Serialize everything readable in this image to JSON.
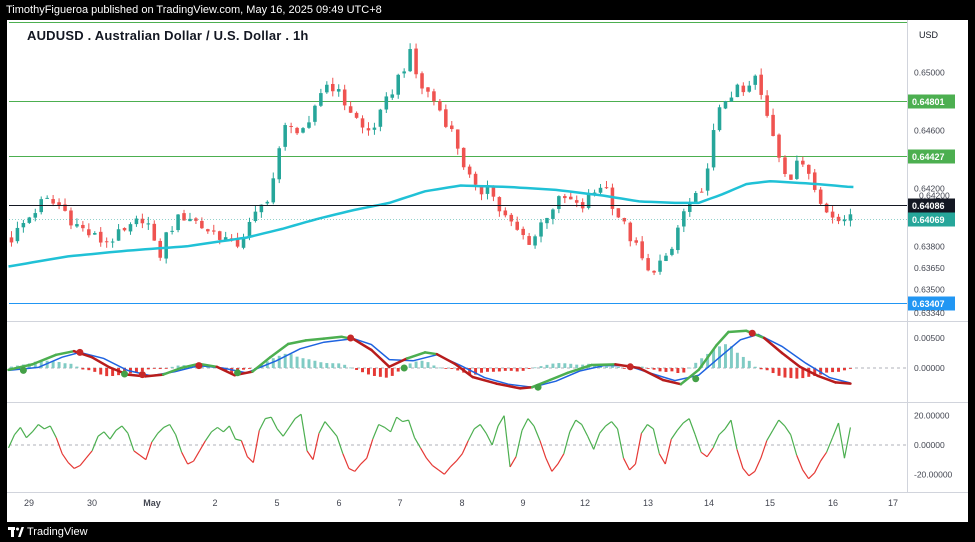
{
  "header": {
    "published_text": "TimothyFigueroa published on TradingView.com, May 16, 2025 09:49 UTC+8"
  },
  "chart_title": "AUDUSD . Australian Dollar / U.S. Dollar . 1h",
  "footer": {
    "brand": "TradingView"
  },
  "colors": {
    "up": "#26a69a",
    "down": "#ef5350",
    "ma": "#20c1d6",
    "level_green": "#4caf50",
    "level_blue": "#2196f3",
    "osc_fast": "#4caf50",
    "osc_slow": "#1e63e0",
    "osc_red": "#b71c1c",
    "hist_up": "#80cbc4",
    "hist_down": "#e53935",
    "rsi_up": "#4caf50",
    "rsi_down": "#e53935"
  },
  "chart_data": [
    {
      "type": "candlestick",
      "series_name": "AUDUSD",
      "currency_label": "USD",
      "x_ticks": [
        "29",
        "30",
        "May",
        "2",
        "5",
        "6",
        "7",
        "8",
        "9",
        "12",
        "13",
        "14",
        "15",
        "16",
        "17"
      ],
      "y_ticks": [
        0.65,
        0.646,
        0.642,
        0.64,
        0.638,
        0.6365,
        0.635,
        0.6334
      ],
      "ylim": [
        0.6329,
        0.6533
      ],
      "horizontal_levels": [
        {
          "value": 0.64801,
          "label": "0.64801",
          "color": "green"
        },
        {
          "value": 0.64427,
          "label": "0.64427",
          "color": "green"
        },
        {
          "value": 0.63407,
          "label": "0.63407",
          "color": "blue"
        }
      ],
      "current_price": {
        "value": 0.64086,
        "label": "0.64086"
      },
      "ma_value": {
        "value": 0.64069,
        "label": "0.64069"
      },
      "extra_tick_label": "0.64200",
      "price_path": [
        [
          0,
          0.6383
        ],
        [
          3,
          0.6398
        ],
        [
          6,
          0.6412
        ],
        [
          9,
          0.6407
        ],
        [
          11,
          0.6396
        ],
        [
          14,
          0.6387
        ],
        [
          16,
          0.6383
        ],
        [
          20,
          0.639
        ],
        [
          23,
          0.6402
        ],
        [
          24.5,
          0.638
        ],
        [
          25,
          0.6365
        ],
        [
          26,
          0.6384
        ],
        [
          28,
          0.6397
        ],
        [
          30,
          0.6402
        ],
        [
          33,
          0.6392
        ],
        [
          36,
          0.6387
        ],
        [
          38,
          0.6379
        ],
        [
          40,
          0.6391
        ],
        [
          42,
          0.6404
        ],
        [
          44,
          0.6418
        ],
        [
          45.5,
          0.6445
        ],
        [
          47,
          0.647
        ],
        [
          49,
          0.6455
        ],
        [
          50.5,
          0.6462
        ],
        [
          52,
          0.6485
        ],
        [
          54,
          0.6494
        ],
        [
          56,
          0.6482
        ],
        [
          58,
          0.6471
        ],
        [
          60,
          0.6458
        ],
        [
          62,
          0.6466
        ],
        [
          64,
          0.6484
        ],
        [
          66,
          0.6501
        ],
        [
          67.5,
          0.6512
        ],
        [
          69,
          0.6492
        ],
        [
          71,
          0.6484
        ],
        [
          73,
          0.6471
        ],
        [
          75,
          0.6455
        ],
        [
          77,
          0.6431
        ],
        [
          79,
          0.6414
        ],
        [
          80.5,
          0.6426
        ],
        [
          82,
          0.6408
        ],
        [
          84,
          0.6397
        ],
        [
          86,
          0.6388
        ],
        [
          88,
          0.6383
        ],
        [
          90,
          0.64
        ],
        [
          92,
          0.641
        ],
        [
          94,
          0.6413
        ],
        [
          96,
          0.6405
        ],
        [
          98,
          0.6415
        ],
        [
          100,
          0.6425
        ],
        [
          102,
          0.6405
        ],
        [
          104,
          0.639
        ],
        [
          106,
          0.6375
        ],
        [
          107.5,
          0.6361
        ],
        [
          109,
          0.6368
        ],
        [
          111,
          0.637
        ],
        [
          113,
          0.64
        ],
        [
          115,
          0.6412
        ],
        [
          116.5,
          0.6414
        ],
        [
          118,
          0.645
        ],
        [
          120,
          0.648
        ],
        [
          122,
          0.6488
        ],
        [
          124,
          0.6485
        ],
        [
          125.5,
          0.6497
        ],
        [
          127,
          0.6475
        ],
        [
          128.5,
          0.6458
        ],
        [
          130,
          0.6437
        ],
        [
          131.5,
          0.6427
        ],
        [
          133,
          0.644
        ],
        [
          134.5,
          0.6432
        ],
        [
          136,
          0.6419
        ],
        [
          137.5,
          0.6403
        ],
        [
          139,
          0.6398
        ],
        [
          140.5,
          0.64
        ],
        [
          141.5,
          0.6406
        ]
      ],
      "ma_path": [
        [
          0,
          0.6366
        ],
        [
          10,
          0.6373
        ],
        [
          20,
          0.6377
        ],
        [
          30,
          0.638
        ],
        [
          40,
          0.6386
        ],
        [
          46,
          0.6392
        ],
        [
          52,
          0.6399
        ],
        [
          58,
          0.6405
        ],
        [
          64,
          0.641
        ],
        [
          70,
          0.6418
        ],
        [
          76,
          0.6422
        ],
        [
          84,
          0.6421
        ],
        [
          92,
          0.6419
        ],
        [
          100,
          0.6415
        ],
        [
          106,
          0.6411
        ],
        [
          112,
          0.641
        ],
        [
          116,
          0.641
        ],
        [
          120,
          0.6416
        ],
        [
          124,
          0.6423
        ],
        [
          128,
          0.6425
        ],
        [
          132,
          0.6424
        ],
        [
          136,
          0.6423
        ],
        [
          141.5,
          0.6421
        ]
      ]
    },
    {
      "type": "line",
      "series_name": "Oscillator",
      "y_ticks": [
        0.005,
        0.0
      ],
      "y_tick_labels": [
        "0.00500",
        "0.00000"
      ],
      "ylim": [
        -0.0055,
        0.0075
      ],
      "fast_path": [
        [
          0,
          -0.0003
        ],
        [
          4,
          0.0006
        ],
        [
          8,
          0.0022
        ],
        [
          11,
          0.0028
        ],
        [
          14,
          0.0018
        ],
        [
          17,
          0.0001
        ],
        [
          20,
          -0.0011
        ],
        [
          23,
          -0.0014
        ],
        [
          26,
          -0.0011
        ],
        [
          29,
          0.0
        ],
        [
          32,
          0.0007
        ],
        [
          35,
          0.0002
        ],
        [
          38,
          -0.0012
        ],
        [
          41,
          -0.0006
        ],
        [
          44,
          0.0018
        ],
        [
          47,
          0.004
        ],
        [
          50,
          0.0046
        ],
        [
          53,
          0.0049
        ],
        [
          56,
          0.0052
        ],
        [
          58,
          0.0048
        ],
        [
          61,
          0.003
        ],
        [
          64,
          0.0002
        ],
        [
          67,
          0.0016
        ],
        [
          70,
          0.0026
        ],
        [
          72,
          0.0023
        ],
        [
          75,
          0.0007
        ],
        [
          78,
          -0.0015
        ],
        [
          82,
          -0.0026
        ],
        [
          86,
          -0.0034
        ],
        [
          88,
          -0.0032
        ],
        [
          91,
          -0.002
        ],
        [
          94,
          -0.0008
        ],
        [
          98,
          0.0005
        ],
        [
          102,
          0.0006
        ],
        [
          106,
          0.0
        ],
        [
          110,
          -0.002
        ],
        [
          113,
          -0.0027
        ],
        [
          116,
          -0.0003
        ],
        [
          119,
          0.0038
        ],
        [
          121,
          0.006
        ],
        [
          124,
          0.0062
        ],
        [
          127,
          0.005
        ],
        [
          130,
          0.0025
        ],
        [
          133,
          0.0002
        ],
        [
          136,
          -0.0013
        ],
        [
          139,
          -0.0024
        ],
        [
          141.5,
          -0.0026
        ]
      ],
      "slow_path": [
        [
          0,
          -0.0004
        ],
        [
          5,
          0.0001
        ],
        [
          9,
          0.0018
        ],
        [
          12,
          0.0026
        ],
        [
          16,
          0.0016
        ],
        [
          20,
          -0.0004
        ],
        [
          24,
          -0.0013
        ],
        [
          28,
          -0.0006
        ],
        [
          32,
          0.0004
        ],
        [
          36,
          0.0
        ],
        [
          40,
          -0.0008
        ],
        [
          45,
          0.0012
        ],
        [
          49,
          0.0032
        ],
        [
          53,
          0.0043
        ],
        [
          58,
          0.0049
        ],
        [
          61,
          0.0039
        ],
        [
          64,
          0.0014
        ],
        [
          68,
          0.0012
        ],
        [
          72,
          0.0022
        ],
        [
          76,
          0.0004
        ],
        [
          80,
          -0.0016
        ],
        [
          84,
          -0.0027
        ],
        [
          88,
          -0.0032
        ],
        [
          92,
          -0.0022
        ],
        [
          96,
          -0.0005
        ],
        [
          100,
          0.0004
        ],
        [
          104,
          0.0004
        ],
        [
          108,
          -0.0009
        ],
        [
          112,
          -0.0021
        ],
        [
          116,
          -0.0012
        ],
        [
          120,
          0.0022
        ],
        [
          123,
          0.0047
        ],
        [
          126,
          0.0056
        ],
        [
          130,
          0.0036
        ],
        [
          134,
          0.0008
        ],
        [
          138,
          -0.0016
        ],
        [
          141.5,
          -0.0025
        ]
      ],
      "cross_points": [
        [
          2.5,
          -0.0004,
          "green"
        ],
        [
          12,
          0.0026,
          "red"
        ],
        [
          19.5,
          -0.001,
          "green"
        ],
        [
          22.5,
          -0.0011,
          "red"
        ],
        [
          32,
          0.0004,
          "red"
        ],
        [
          38.5,
          -0.0008,
          "green"
        ],
        [
          57.5,
          0.005,
          "red"
        ],
        [
          66.5,
          0.0,
          "green"
        ],
        [
          89,
          -0.0032,
          "green"
        ],
        [
          104.5,
          0.0002,
          "red"
        ],
        [
          115.5,
          -0.0018,
          "green"
        ],
        [
          125,
          0.0058,
          "red"
        ]
      ]
    },
    {
      "type": "line",
      "series_name": "Momentum",
      "y_ticks": [
        20,
        0,
        -20
      ],
      "y_tick_labels": [
        "20.00000",
        "0.00000",
        "-20.00000"
      ],
      "ylim": [
        -28,
        28
      ],
      "values": [
        -2,
        7,
        12,
        5,
        9,
        14,
        11,
        13,
        5,
        -6,
        -12,
        -16,
        -14,
        -9,
        -4,
        6,
        9,
        4,
        10,
        13,
        8,
        -4,
        -7,
        -10,
        2,
        8,
        12,
        14,
        7,
        -5,
        -13,
        -11,
        -4,
        3,
        9,
        12,
        9,
        13,
        4,
        3,
        -8,
        -12,
        10,
        18,
        19,
        11,
        6,
        12,
        18,
        21,
        -4,
        -10,
        8,
        16,
        11,
        6,
        -6,
        -16,
        -18,
        -13,
        -9,
        4,
        14,
        12,
        9,
        19,
        16,
        17,
        5,
        -2,
        -9,
        -14,
        -17,
        -20,
        -15,
        -11,
        -6,
        3,
        11,
        14,
        8,
        0,
        13,
        20,
        -15,
        -8,
        10,
        18,
        13,
        3,
        -9,
        -18,
        -13,
        -6,
        9,
        17,
        14,
        6,
        -3,
        8,
        13,
        16,
        11,
        -9,
        -17,
        -13,
        8,
        14,
        11,
        -6,
        -13,
        4,
        10,
        15,
        18,
        7,
        -5,
        -8,
        -2,
        7,
        11,
        17,
        -3,
        -16,
        -21,
        -18,
        -9,
        3,
        10,
        17,
        13,
        7,
        -7,
        -17,
        -23,
        -19,
        -11,
        -5,
        5,
        15,
        -9,
        12
      ]
    }
  ]
}
